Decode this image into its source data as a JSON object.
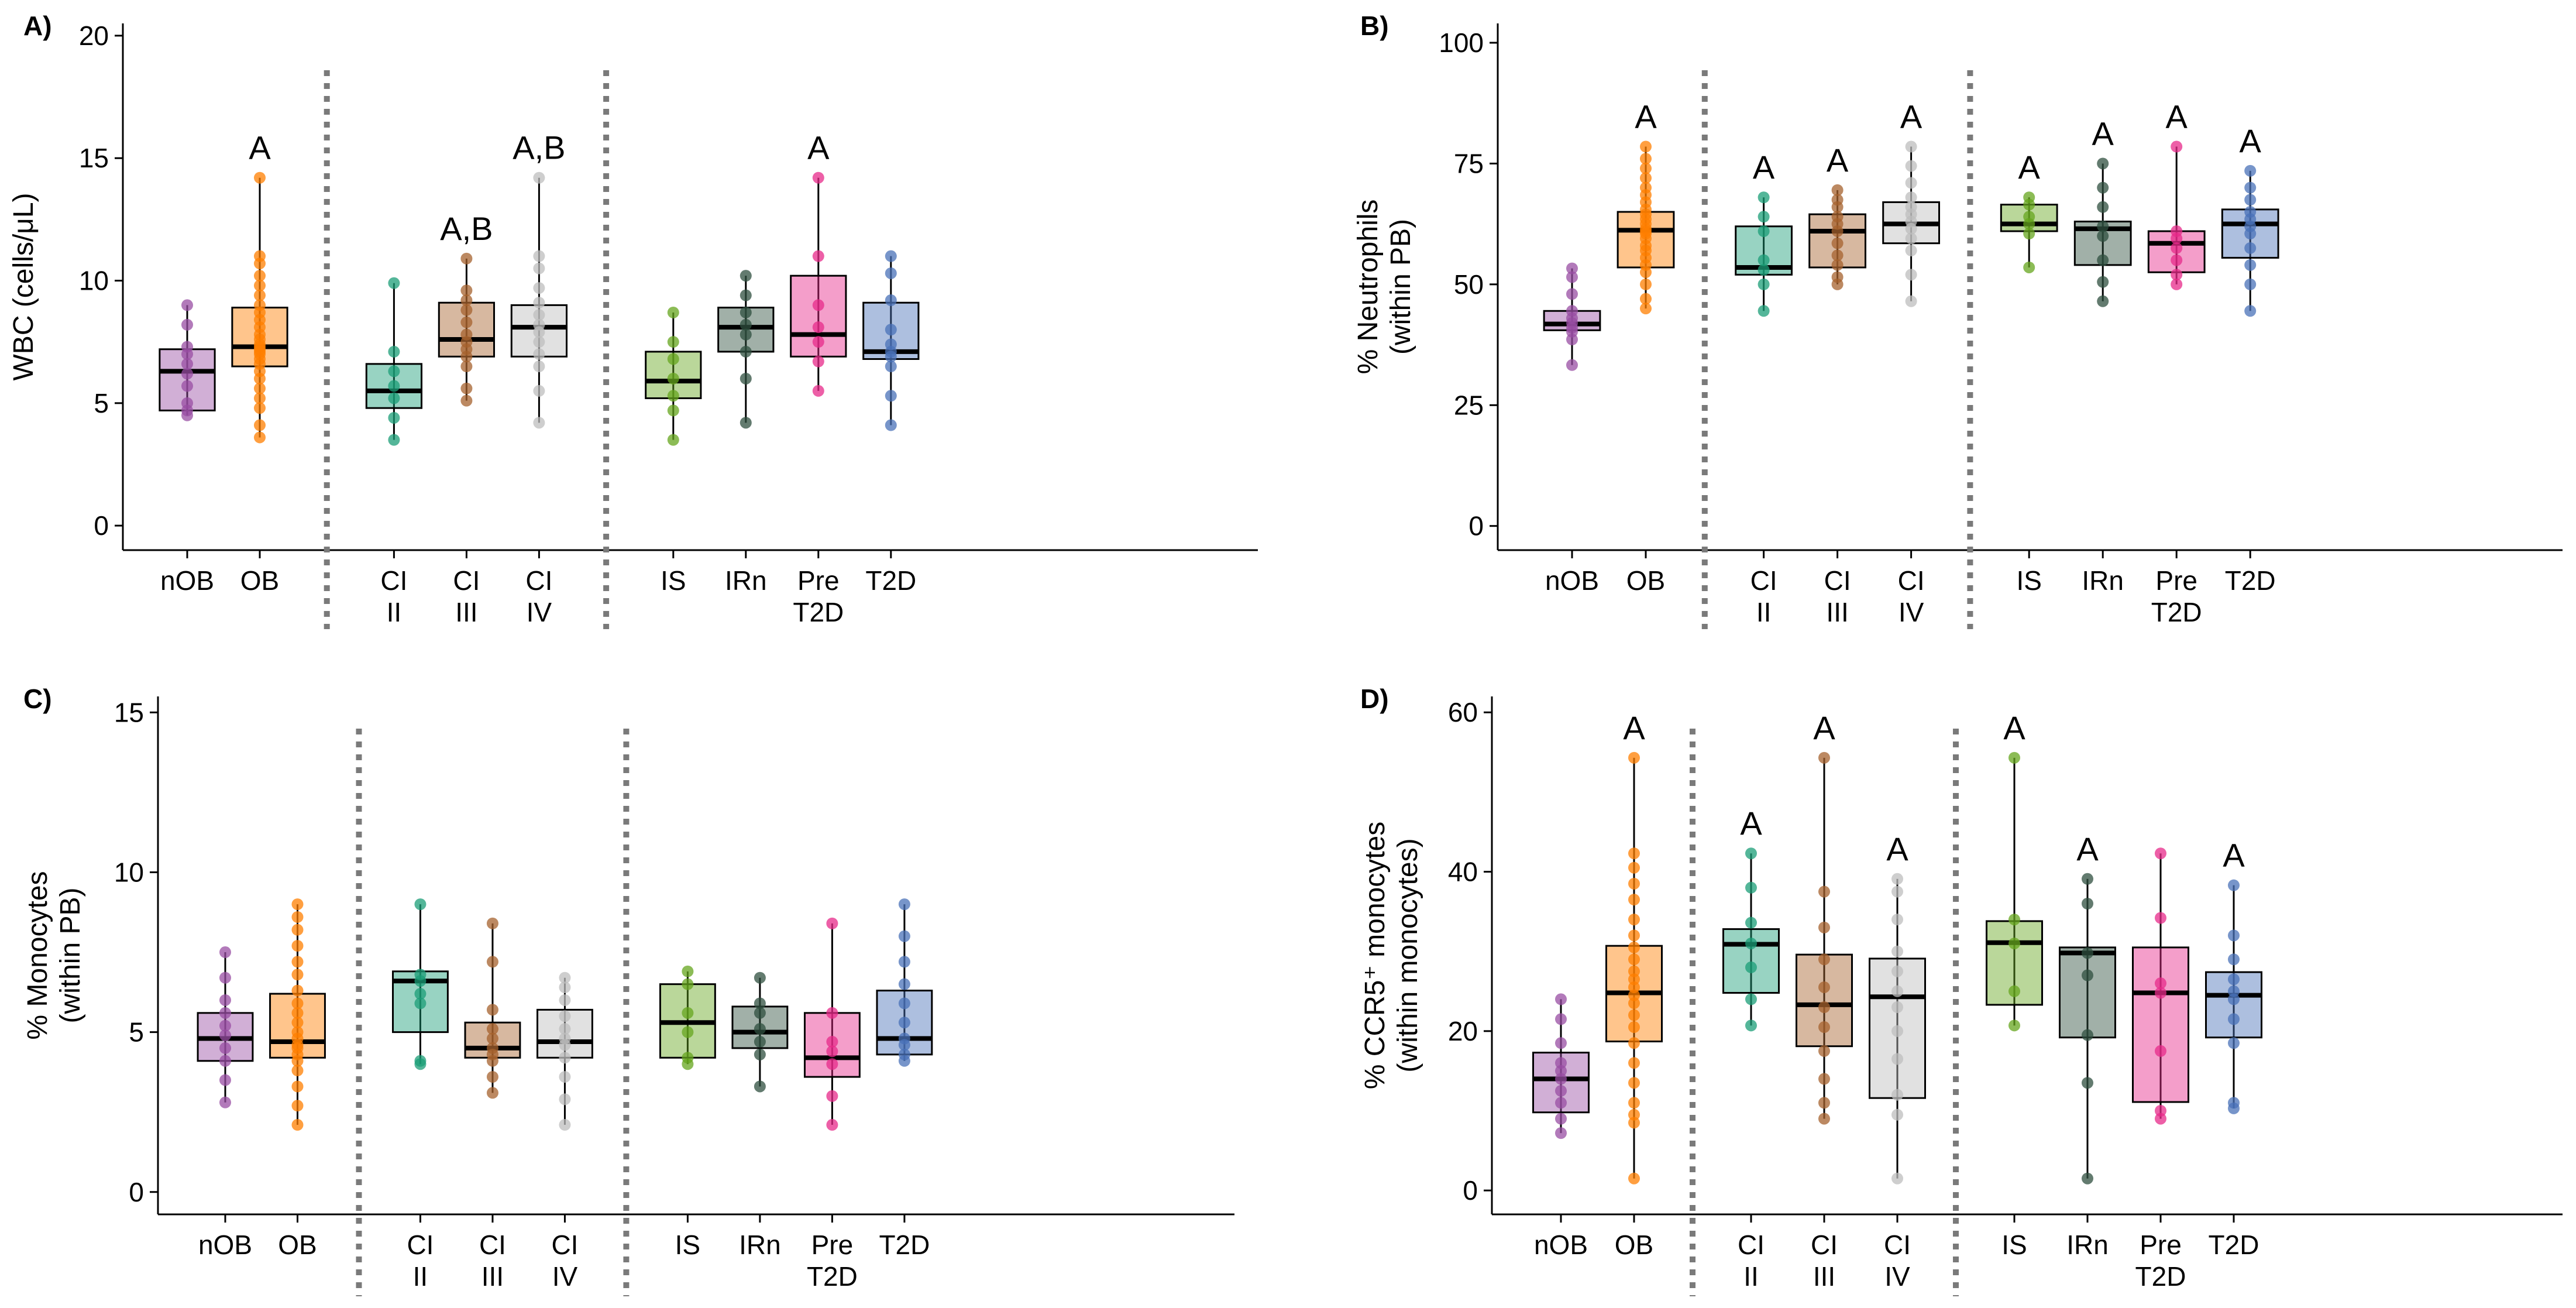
{
  "chart_data": [
    {
      "type": "box",
      "panel": "A)",
      "ylabel": [
        "WBC (cells/μL)"
      ],
      "ylim": [
        -1,
        20.5
      ],
      "yticks": [
        0,
        5,
        10,
        15,
        20
      ],
      "separators_after": [
        "OB",
        "CI IV"
      ],
      "groups": [
        {
          "label": [
            "nOB"
          ],
          "color": "#984EA3",
          "q1": 4.7,
          "median": 6.3,
          "q3": 7.2,
          "wlo": 4.5,
          "whi": 9.0,
          "sig": "",
          "points": [
            4.5,
            4.7,
            5.0,
            5.7,
            6.2,
            6.6,
            7.0,
            7.3,
            8.2,
            9.0
          ]
        },
        {
          "label": [
            "OB"
          ],
          "color": "#FF7F00",
          "q1": 6.5,
          "median": 7.3,
          "q3": 8.9,
          "wlo": 3.6,
          "whi": 14.2,
          "sig": "A",
          "points": [
            3.6,
            4.1,
            4.8,
            5.2,
            5.6,
            6.0,
            6.3,
            6.6,
            6.8,
            7.0,
            7.1,
            7.2,
            7.3,
            7.4,
            7.6,
            7.8,
            8.1,
            8.4,
            8.7,
            9.0,
            9.4,
            9.8,
            10.2,
            10.7,
            11.0,
            14.2
          ]
        },
        {
          "label": [
            "CI",
            "II"
          ],
          "color": "#1B9E77",
          "q1": 4.8,
          "median": 5.5,
          "q3": 6.6,
          "wlo": 3.5,
          "whi": 9.9,
          "sig": "",
          "points": [
            3.5,
            4.4,
            5.2,
            5.7,
            6.3,
            7.1,
            9.9
          ]
        },
        {
          "label": [
            "CI",
            "III"
          ],
          "color": "#A6612D",
          "q1": 6.9,
          "median": 7.6,
          "q3": 9.1,
          "wlo": 5.1,
          "whi": 10.9,
          "sig": "A,B",
          "points": [
            5.1,
            5.6,
            6.5,
            6.9,
            7.2,
            7.5,
            7.8,
            8.3,
            8.8,
            9.2,
            9.6,
            10.9
          ]
        },
        {
          "label": [
            "CI",
            "IV"
          ],
          "color": "#BDBDBD",
          "q1": 6.9,
          "median": 8.1,
          "q3": 9.0,
          "wlo": 4.2,
          "whi": 14.2,
          "sig": "A,B",
          "points": [
            4.2,
            5.5,
            6.5,
            7.0,
            7.5,
            7.9,
            8.2,
            8.6,
            9.1,
            9.7,
            10.5,
            11.0,
            14.2
          ]
        },
        {
          "label": [
            "IS"
          ],
          "color": "#66A61E",
          "q1": 5.2,
          "median": 5.9,
          "q3": 7.1,
          "wlo": 3.5,
          "whi": 8.7,
          "sig": "",
          "points": [
            3.5,
            4.7,
            5.3,
            6.0,
            6.8,
            7.5,
            8.7
          ]
        },
        {
          "label": [
            "IRn"
          ],
          "color": "#2F4F3F",
          "q1": 7.1,
          "median": 8.1,
          "q3": 8.9,
          "wlo": 4.2,
          "whi": 10.2,
          "sig": "",
          "points": [
            4.2,
            6.0,
            7.1,
            7.8,
            8.2,
            8.7,
            9.4,
            10.2
          ]
        },
        {
          "label": [
            "Pre",
            "T2D"
          ],
          "color": "#E7298A",
          "q1": 6.9,
          "median": 7.8,
          "q3": 10.2,
          "wlo": 5.5,
          "whi": 14.2,
          "sig": "A",
          "points": [
            5.5,
            6.7,
            7.5,
            8.1,
            9.0,
            11.0,
            14.2
          ]
        },
        {
          "label": [
            "T2D"
          ],
          "color": "#4A72B8",
          "q1": 6.8,
          "median": 7.1,
          "q3": 9.1,
          "wlo": 4.1,
          "whi": 11.0,
          "sig": "",
          "points": [
            4.1,
            5.3,
            6.5,
            6.9,
            7.1,
            7.4,
            8.0,
            9.2,
            10.3,
            11.0
          ]
        }
      ]
    },
    {
      "type": "box",
      "panel": "B)",
      "ylabel": [
        "% Neutrophils",
        "(within PB)"
      ],
      "ylim": [
        -5,
        104
      ],
      "yticks": [
        0,
        25,
        50,
        75,
        100
      ],
      "separators_after": [
        "OB",
        "CI IV"
      ],
      "groups": [
        {
          "label": [
            "nOB"
          ],
          "color": "#984EA3",
          "q1": 40.5,
          "median": 41.8,
          "q3": 44.5,
          "wlo": 33.3,
          "whi": 53.3,
          "sig": "",
          "points": [
            33.3,
            38.6,
            40.2,
            41.0,
            42.0,
            43.0,
            44.5,
            48.0,
            51.5,
            53.3
          ]
        },
        {
          "label": [
            "OB"
          ],
          "color": "#FF7F00",
          "q1": 53.5,
          "median": 61.2,
          "q3": 65.0,
          "wlo": 45.0,
          "whi": 78.5,
          "sig": "A",
          "points": [
            45.0,
            47.0,
            50.0,
            52.5,
            54.0,
            55.5,
            57.0,
            58.0,
            59.5,
            60.5,
            61.0,
            61.5,
            62.5,
            63.5,
            64.5,
            65.5,
            67.0,
            68.5,
            70.0,
            72.0,
            74.0,
            76.0,
            78.5
          ]
        },
        {
          "label": [
            "CI",
            "II"
          ],
          "color": "#1B9E77",
          "q1": 52.0,
          "median": 53.5,
          "q3": 62.0,
          "wlo": 44.5,
          "whi": 68.0,
          "sig": "A",
          "points": [
            44.5,
            50.0,
            53.0,
            55.0,
            61.0,
            64.0,
            68.0
          ]
        },
        {
          "label": [
            "CI",
            "III"
          ],
          "color": "#A6612D",
          "q1": 53.5,
          "median": 61.0,
          "q3": 64.5,
          "wlo": 50.0,
          "whi": 69.5,
          "sig": "A",
          "points": [
            50.0,
            51.5,
            54.0,
            56.0,
            58.5,
            61.0,
            62.5,
            64.0,
            66.0,
            67.5,
            69.5
          ]
        },
        {
          "label": [
            "CI",
            "IV"
          ],
          "color": "#BDBDBD",
          "q1": 58.5,
          "median": 62.5,
          "q3": 67.0,
          "wlo": 46.5,
          "whi": 78.5,
          "sig": "A",
          "points": [
            46.5,
            52.0,
            57.0,
            59.5,
            61.5,
            63.0,
            64.5,
            66.0,
            68.0,
            71.0,
            74.5,
            78.5
          ]
        },
        {
          "label": [
            "IS"
          ],
          "color": "#66A61E",
          "q1": 61.0,
          "median": 62.5,
          "q3": 66.5,
          "wlo": 53.5,
          "whi": 68.0,
          "sig": "A",
          "points": [
            53.5,
            60.5,
            62.5,
            64.0,
            66.5,
            68.0
          ]
        },
        {
          "label": [
            "IRn"
          ],
          "color": "#2F4F3F",
          "q1": 54.0,
          "median": 61.5,
          "q3": 63.0,
          "wlo": 46.5,
          "whi": 75.0,
          "sig": "A",
          "points": [
            46.5,
            50.5,
            55.0,
            60.0,
            62.0,
            66.0,
            70.0,
            75.0
          ]
        },
        {
          "label": [
            "Pre",
            "T2D"
          ],
          "color": "#E7298A",
          "q1": 52.5,
          "median": 58.5,
          "q3": 61.0,
          "wlo": 50.0,
          "whi": 78.5,
          "sig": "A",
          "points": [
            50.0,
            52.0,
            55.0,
            57.5,
            59.5,
            61.0,
            78.5
          ]
        },
        {
          "label": [
            "T2D"
          ],
          "color": "#4A72B8",
          "q1": 55.5,
          "median": 62.5,
          "q3": 65.5,
          "wlo": 44.5,
          "whi": 73.5,
          "sig": "A",
          "points": [
            44.5,
            50.0,
            54.0,
            57.5,
            60.5,
            62.0,
            63.5,
            65.0,
            67.5,
            70.0,
            73.5
          ]
        }
      ]
    },
    {
      "type": "box",
      "panel": "C)",
      "ylabel": [
        "% Monocytes",
        "(within PB)"
      ],
      "ylim": [
        -0.7,
        15.5
      ],
      "yticks": [
        0,
        5,
        10,
        15
      ],
      "separators_after": [
        "OB",
        "CI IV"
      ],
      "groups": [
        {
          "label": [
            "nOB"
          ],
          "color": "#984EA3",
          "q1": 4.1,
          "median": 4.8,
          "q3": 5.6,
          "wlo": 2.8,
          "whi": 7.5,
          "sig": "",
          "points": [
            2.8,
            3.5,
            4.1,
            4.5,
            4.9,
            5.2,
            5.6,
            6.0,
            6.7,
            7.5
          ]
        },
        {
          "label": [
            "OB"
          ],
          "color": "#FF7F00",
          "q1": 4.2,
          "median": 4.7,
          "q3": 6.2,
          "wlo": 2.1,
          "whi": 9.0,
          "sig": "",
          "points": [
            2.1,
            2.7,
            3.3,
            3.8,
            4.1,
            4.3,
            4.5,
            4.6,
            4.8,
            5.0,
            5.3,
            5.6,
            5.9,
            6.3,
            6.8,
            7.2,
            7.7,
            8.2,
            8.6,
            9.0
          ]
        },
        {
          "label": [
            "CI",
            "II"
          ],
          "color": "#1B9E77",
          "q1": 5.0,
          "median": 6.6,
          "q3": 6.9,
          "wlo": 4.0,
          "whi": 9.0,
          "sig": "",
          "points": [
            4.0,
            4.1,
            5.9,
            6.2,
            6.6,
            6.8,
            9.0
          ]
        },
        {
          "label": [
            "CI",
            "III"
          ],
          "color": "#A6612D",
          "q1": 4.2,
          "median": 4.5,
          "q3": 5.3,
          "wlo": 3.1,
          "whi": 8.4,
          "sig": "",
          "points": [
            3.1,
            3.6,
            4.1,
            4.3,
            4.5,
            4.8,
            5.1,
            5.7,
            7.2,
            8.4
          ]
        },
        {
          "label": [
            "CI",
            "IV"
          ],
          "color": "#BDBDBD",
          "q1": 4.2,
          "median": 4.7,
          "q3": 5.7,
          "wlo": 2.1,
          "whi": 6.7,
          "sig": "",
          "points": [
            2.1,
            2.9,
            3.6,
            4.2,
            4.6,
            4.8,
            5.1,
            5.5,
            6.0,
            6.4,
            6.7
          ]
        },
        {
          "label": [
            "IS"
          ],
          "color": "#66A61E",
          "q1": 4.2,
          "median": 5.3,
          "q3": 6.5,
          "wlo": 4.0,
          "whi": 6.9,
          "sig": "",
          "points": [
            4.0,
            4.2,
            5.0,
            5.6,
            6.5,
            6.9
          ]
        },
        {
          "label": [
            "IRn"
          ],
          "color": "#2F4F3F",
          "q1": 4.5,
          "median": 5.0,
          "q3": 5.8,
          "wlo": 3.3,
          "whi": 6.7,
          "sig": "",
          "points": [
            3.3,
            4.3,
            4.7,
            5.1,
            5.6,
            5.9,
            6.7
          ]
        },
        {
          "label": [
            "Pre",
            "T2D"
          ],
          "color": "#E7298A",
          "q1": 3.6,
          "median": 4.2,
          "q3": 5.6,
          "wlo": 2.1,
          "whi": 8.4,
          "sig": "",
          "points": [
            2.1,
            3.0,
            4.0,
            4.4,
            4.7,
            5.6,
            8.4
          ]
        },
        {
          "label": [
            "T2D"
          ],
          "color": "#4A72B8",
          "q1": 4.3,
          "median": 4.8,
          "q3": 6.3,
          "wlo": 4.1,
          "whi": 9.0,
          "sig": "",
          "points": [
            4.1,
            4.3,
            4.6,
            4.8,
            5.3,
            5.9,
            6.5,
            7.2,
            8.0,
            9.0
          ]
        }
      ]
    },
    {
      "type": "box",
      "panel": "D)",
      "ylabel": [
        "% CCR5⁺ monocytes",
        "(within monocytes)"
      ],
      "ylim": [
        -3,
        62
      ],
      "yticks": [
        0,
        20,
        40,
        60
      ],
      "separators_after": [
        "OB",
        "CI IV"
      ],
      "groups": [
        {
          "label": [
            "nOB"
          ],
          "color": "#984EA3",
          "q1": 9.8,
          "median": 14.0,
          "q3": 17.3,
          "wlo": 7.2,
          "whi": 24.0,
          "sig": "",
          "points": [
            7.2,
            9.0,
            11.0,
            12.5,
            14.0,
            15.0,
            16.0,
            18.5,
            21.5,
            24.0
          ]
        },
        {
          "label": [
            "OB"
          ],
          "color": "#FF7F00",
          "q1": 18.7,
          "median": 24.8,
          "q3": 30.7,
          "wlo": 1.5,
          "whi": 54.3,
          "sig": "A",
          "points": [
            1.5,
            8.5,
            9.5,
            11.0,
            13.5,
            16.0,
            18.5,
            20.5,
            22.0,
            23.5,
            24.5,
            25.5,
            26.5,
            27.5,
            29.0,
            30.5,
            32.0,
            34.0,
            36.5,
            38.5,
            40.5,
            42.3,
            54.3
          ]
        },
        {
          "label": [
            "CI",
            "II"
          ],
          "color": "#1B9E77",
          "q1": 24.8,
          "median": 30.9,
          "q3": 32.8,
          "wlo": 20.7,
          "whi": 42.3,
          "sig": "A",
          "points": [
            20.7,
            24.0,
            28.0,
            31.0,
            33.6,
            38.0,
            42.3
          ]
        },
        {
          "label": [
            "CI",
            "III"
          ],
          "color": "#A6612D",
          "q1": 18.1,
          "median": 23.3,
          "q3": 29.6,
          "wlo": 9.0,
          "whi": 54.3,
          "sig": "A",
          "points": [
            9.0,
            11.0,
            14.0,
            17.5,
            20.5,
            23.0,
            25.5,
            29.0,
            33.0,
            37.5,
            54.3
          ]
        },
        {
          "label": [
            "CI",
            "IV"
          ],
          "color": "#BDBDBD",
          "q1": 11.6,
          "median": 24.3,
          "q3": 29.1,
          "wlo": 1.5,
          "whi": 39.1,
          "sig": "A",
          "points": [
            1.5,
            9.5,
            12.0,
            16.5,
            20.0,
            23.0,
            25.0,
            27.5,
            30.0,
            34.0,
            37.5,
            39.1
          ]
        },
        {
          "label": [
            "IS"
          ],
          "color": "#66A61E",
          "q1": 23.3,
          "median": 31.1,
          "q3": 33.8,
          "wlo": 20.7,
          "whi": 54.3,
          "sig": "A",
          "points": [
            20.7,
            25.0,
            31.0,
            34.0,
            54.3
          ]
        },
        {
          "label": [
            "IRn"
          ],
          "color": "#2F4F3F",
          "q1": 19.2,
          "median": 29.8,
          "q3": 30.5,
          "wlo": 1.5,
          "whi": 39.1,
          "sig": "A",
          "points": [
            1.5,
            13.5,
            19.5,
            27.0,
            29.8,
            36.0,
            39.1
          ]
        },
        {
          "label": [
            "Pre",
            "T2D"
          ],
          "color": "#E7298A",
          "q1": 11.1,
          "median": 24.8,
          "q3": 30.5,
          "wlo": 9.0,
          "whi": 42.3,
          "sig": "",
          "points": [
            9.0,
            10.0,
            17.5,
            24.8,
            26.0,
            34.2,
            42.3
          ]
        },
        {
          "label": [
            "T2D"
          ],
          "color": "#4A72B8",
          "q1": 19.2,
          "median": 24.5,
          "q3": 27.4,
          "wlo": 10.3,
          "whi": 38.3,
          "sig": "A",
          "points": [
            10.3,
            11.0,
            18.5,
            21.5,
            24.0,
            25.0,
            26.5,
            29.0,
            32.0,
            38.3
          ]
        }
      ]
    }
  ]
}
